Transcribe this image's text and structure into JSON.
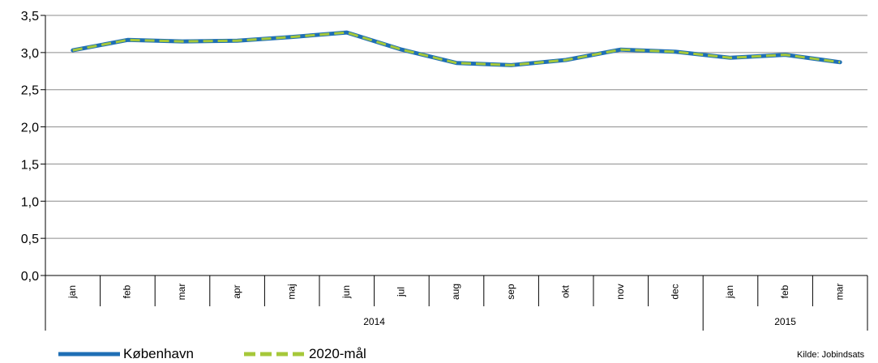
{
  "chart_data": {
    "type": "line",
    "categories": [
      "jan",
      "feb",
      "mar",
      "apr",
      "maj",
      "jun",
      "jul",
      "aug",
      "sep",
      "okt",
      "nov",
      "dec",
      "jan",
      "feb",
      "mar"
    ],
    "year_groups": [
      {
        "label": "2014",
        "count": 12
      },
      {
        "label": "2015",
        "count": 3
      }
    ],
    "series": [
      {
        "name": "København",
        "color": "#1f6fb5",
        "style": "solid",
        "values": [
          3.03,
          3.17,
          3.15,
          3.16,
          3.21,
          3.27,
          3.04,
          2.86,
          2.83,
          2.9,
          3.04,
          3.01,
          2.93,
          2.97,
          2.87
        ]
      },
      {
        "name": "2020-mål",
        "color": "#a6c83a",
        "style": "dashed",
        "values": [
          3.03,
          3.17,
          3.15,
          3.16,
          3.21,
          3.27,
          3.04,
          2.86,
          2.83,
          2.9,
          3.04,
          3.01,
          2.93,
          2.97,
          2.87
        ]
      }
    ],
    "ylim": [
      0,
      3.5
    ],
    "yticks": [
      "0,0",
      "0,5",
      "1,0",
      "1,5",
      "2,0",
      "2,5",
      "3,0",
      "3,5"
    ],
    "grid": true,
    "legend_position": "bottom-left",
    "source_note": "Kilde: Jobindsats"
  }
}
